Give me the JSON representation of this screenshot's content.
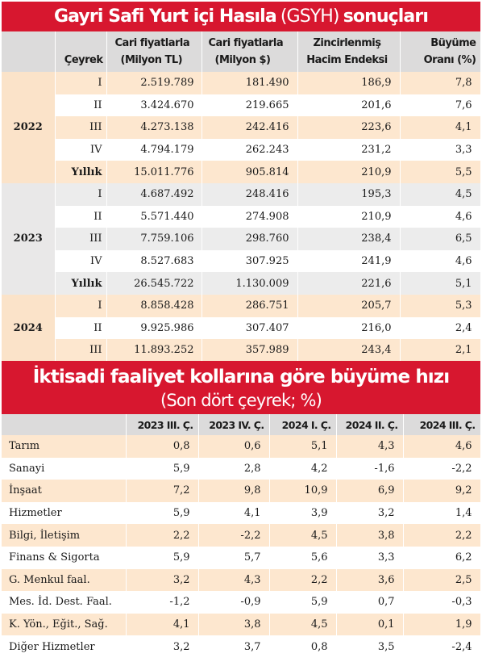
{
  "gdp_panel": {
    "title_bold": "Gayri Safi Yurt içi Hasıla",
    "title_light": "(GSYH)",
    "title_bold2": "sonuçları",
    "headers": {
      "quarter": "Çeyrek",
      "nominal_tl": [
        "Cari fiyatlarla",
        "(Milyon TL)"
      ],
      "nominal_usd": [
        "Cari fiyatlarla",
        "(Milyon $)"
      ],
      "chain_index": [
        "Zincirlenmiş",
        "Hacim Endeksi"
      ],
      "growth": [
        "Büyüme",
        "Oranı (%)"
      ]
    },
    "years": [
      {
        "year": "2022",
        "rows": [
          {
            "quarter": "I",
            "tl": "2.519.789",
            "usd": "181.490",
            "index": "186,9",
            "growth": "7,8"
          },
          {
            "quarter": "II",
            "tl": "3.424.670",
            "usd": "219.665",
            "index": "201,6",
            "growth": "7,6"
          },
          {
            "quarter": "III",
            "tl": "4.273.138",
            "usd": "242.416",
            "index": "223,6",
            "growth": "4,1"
          },
          {
            "quarter": "IV",
            "tl": "4.794.179",
            "usd": "262.243",
            "index": "231,2",
            "growth": "3,3"
          },
          {
            "quarter": "Yıllık",
            "tl": "15.011.776",
            "usd": "905.814",
            "index": "210,9",
            "growth": "5,5"
          }
        ]
      },
      {
        "year": "2023",
        "rows": [
          {
            "quarter": "I",
            "tl": "4.687.492",
            "usd": "248.416",
            "index": "195,3",
            "growth": "4,5"
          },
          {
            "quarter": "II",
            "tl": "5.571.440",
            "usd": "274.908",
            "index": "210,9",
            "growth": "4,6"
          },
          {
            "quarter": "III",
            "tl": "7.759.106",
            "usd": "298.760",
            "index": "238,4",
            "growth": "6,5"
          },
          {
            "quarter": "IV",
            "tl": "8.527.683",
            "usd": "307.925",
            "index": "241,9",
            "growth": "4,6"
          },
          {
            "quarter": "Yıllık",
            "tl": "26.545.722",
            "usd": "1.130.009",
            "index": "221,6",
            "growth": "5,1"
          }
        ]
      },
      {
        "year": "2024",
        "rows": [
          {
            "quarter": "I",
            "tl": "8.858.428",
            "usd": "286.751",
            "index": "205,7",
            "growth": "5,3"
          },
          {
            "quarter": "II",
            "tl": "9.925.986",
            "usd": "307.407",
            "index": "216,0",
            "growth": "2,4"
          },
          {
            "quarter": "III",
            "tl": "11.893.252",
            "usd": "357.989",
            "index": "243,4",
            "growth": "2,1"
          }
        ]
      }
    ]
  },
  "sector_panel": {
    "title": "İktisadi faaliyet kollarına göre büyüme hızı",
    "subtitle": "(Son dört çeyrek; %)",
    "columns": [
      "2023 III. Ç.",
      "2023 IV. Ç.",
      "2024 I. Ç.",
      "2024 II. Ç.",
      "2024  III. Ç."
    ],
    "rows": [
      {
        "sector": "Tarım",
        "values": [
          "0,8",
          "0,6",
          "5,1",
          "4,3",
          "4,6"
        ]
      },
      {
        "sector": "Sanayi",
        "values": [
          "5,9",
          "2,8",
          "4,2",
          "-1,6",
          "-2,2"
        ]
      },
      {
        "sector": "İnşaat",
        "values": [
          "7,2",
          "9,8",
          "10,9",
          "6,9",
          "9,2"
        ]
      },
      {
        "sector": "Hizmetler",
        "values": [
          "5,9",
          "4,1",
          "3,9",
          "3,2",
          "1,4"
        ]
      },
      {
        "sector": "Bilgi, İletişim",
        "values": [
          "2,2",
          "-2,2",
          "4,5",
          "3,8",
          "2,2"
        ]
      },
      {
        "sector": "Finans & Sigorta",
        "values": [
          "5,9",
          "5,7",
          "5,6",
          "3,3",
          "6,2"
        ]
      },
      {
        "sector": "G. Menkul faal.",
        "values": [
          "3,2",
          "4,3",
          "2,2",
          "3,6",
          "2,5"
        ]
      },
      {
        "sector": "Mes. İd. Dest. Faal.",
        "values": [
          "-1,2",
          "-0,9",
          "5,9",
          "0,7",
          "-0,3"
        ]
      },
      {
        "sector": "K. Yön., Eğit., Sağ.",
        "values": [
          "4,1",
          "3,8",
          "4,5",
          "0,1",
          "1,9"
        ]
      },
      {
        "sector": "Diğer Hizmetler",
        "values": [
          "3,2",
          "3,7",
          "0,8",
          "3,5",
          "-2,4"
        ]
      }
    ]
  },
  "colors": {
    "banner": "#d7172f",
    "header_gray": "#dcdbdb",
    "peach": "#fde7cf",
    "gray_band": "#e9e8e8"
  },
  "chart_data": [
    {
      "type": "table",
      "title": "Gayri Safi Yurt içi Hasıla (GSYH) sonuçları",
      "columns": [
        "Çeyrek",
        "Cari fiyatlarla (Milyon TL)",
        "Cari fiyatlarla (Milyon $)",
        "Zincirlenmiş Hacim Endeksi",
        "Büyüme Oranı (%)"
      ],
      "rows": [
        [
          "2022",
          "I",
          2519789,
          181490,
          186.9,
          7.8
        ],
        [
          "2022",
          "II",
          3424670,
          219665,
          201.6,
          7.6
        ],
        [
          "2022",
          "III",
          4273138,
          242416,
          223.6,
          4.1
        ],
        [
          "2022",
          "IV",
          4794179,
          262243,
          231.2,
          3.3
        ],
        [
          "2022",
          "Yıllık",
          15011776,
          905814,
          210.9,
          5.5
        ],
        [
          "2023",
          "I",
          4687492,
          248416,
          195.3,
          4.5
        ],
        [
          "2023",
          "II",
          5571440,
          274908,
          210.9,
          4.6
        ],
        [
          "2023",
          "III",
          7759106,
          298760,
          238.4,
          6.5
        ],
        [
          "2023",
          "IV",
          8527683,
          307925,
          241.9,
          4.6
        ],
        [
          "2023",
          "Yıllık",
          26545722,
          1130009,
          221.6,
          5.1
        ],
        [
          "2024",
          "I",
          8858428,
          286751,
          205.7,
          5.3
        ],
        [
          "2024",
          "II",
          9925986,
          307407,
          216.0,
          2.4
        ],
        [
          "2024",
          "III",
          11893252,
          357989,
          243.4,
          2.1
        ]
      ]
    },
    {
      "type": "table",
      "title": "İktisadi faaliyet kollarına göre büyüme hızı",
      "subtitle": "(Son dört çeyrek; %)",
      "columns": [
        "2023 III. Ç.",
        "2023 IV. Ç.",
        "2024 I. Ç.",
        "2024 II. Ç.",
        "2024 III. Ç."
      ],
      "rows": [
        [
          "Tarım",
          0.8,
          0.6,
          5.1,
          4.3,
          4.6
        ],
        [
          "Sanayi",
          5.9,
          2.8,
          4.2,
          -1.6,
          -2.2
        ],
        [
          "İnşaat",
          7.2,
          9.8,
          10.9,
          6.9,
          9.2
        ],
        [
          "Hizmetler",
          5.9,
          4.1,
          3.9,
          3.2,
          1.4
        ],
        [
          "Bilgi, İletişim",
          2.2,
          -2.2,
          4.5,
          3.8,
          2.2
        ],
        [
          "Finans & Sigorta",
          5.9,
          5.7,
          5.6,
          3.3,
          6.2
        ],
        [
          "G. Menkul faal.",
          3.2,
          4.3,
          2.2,
          3.6,
          2.5
        ],
        [
          "Mes. İd. Dest. Faal.",
          -1.2,
          -0.9,
          5.9,
          0.7,
          -0.3
        ],
        [
          "K. Yön., Eğit., Sağ.",
          4.1,
          3.8,
          4.5,
          0.1,
          1.9
        ],
        [
          "Diğer Hizmetler",
          3.2,
          3.7,
          0.8,
          3.5,
          -2.4
        ]
      ]
    }
  ]
}
